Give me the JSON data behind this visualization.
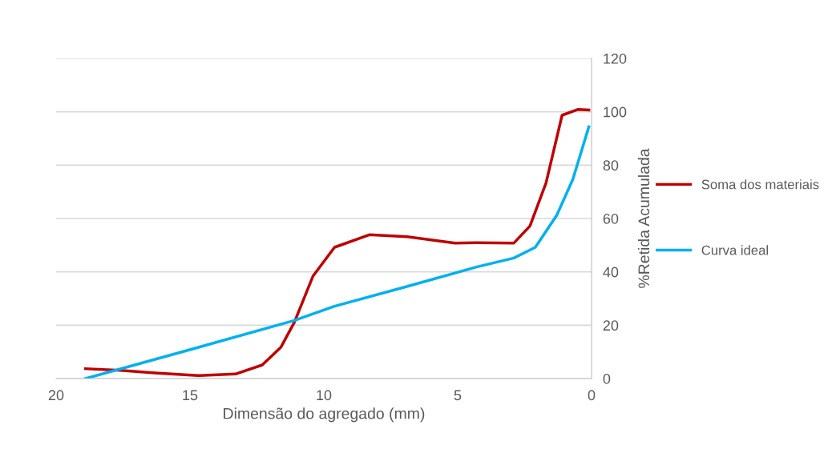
{
  "chart_data": {
    "type": "line",
    "xlabel": "Dimensão do agregado (mm)",
    "ylabel": "%Retida Acumulada",
    "xlim": [
      20,
      0
    ],
    "xticks": [
      20,
      15,
      10,
      5,
      0
    ],
    "ylim": [
      0,
      120
    ],
    "yticks": [
      0,
      20,
      40,
      60,
      80,
      100,
      120
    ],
    "grid": "y",
    "legend": "right",
    "marker": "none",
    "line_style": "solid",
    "series": [
      {
        "name": "Soma dos materiais",
        "color": "#c00000",
        "x": [
          18.9,
          17.6,
          16.3,
          14.7,
          13.3,
          12.3,
          11.6,
          11.1,
          10.4,
          9.6,
          8.3,
          6.9,
          5.1,
          4.3,
          2.9,
          2.3,
          1.7,
          1.1,
          0.5,
          0.1
        ],
        "values": [
          3.7,
          3.1,
          2.1,
          1.1,
          1.7,
          5.1,
          11.8,
          21.1,
          38.5,
          49.2,
          53.9,
          53.2,
          50.8,
          50.9,
          50.8,
          57.2,
          73.3,
          98.7,
          100.9,
          100.7
        ]
      },
      {
        "name": "Curva ideal",
        "color": "#00b0f0",
        "x": [
          18.9,
          14.9,
          11.1,
          9.6,
          6.9,
          4.3,
          2.9,
          2.1,
          1.3,
          0.7,
          0.1
        ],
        "values": [
          0,
          11.1,
          21.8,
          27.1,
          34.5,
          41.8,
          45.2,
          49.2,
          61.2,
          74.6,
          94.4
        ]
      }
    ]
  }
}
